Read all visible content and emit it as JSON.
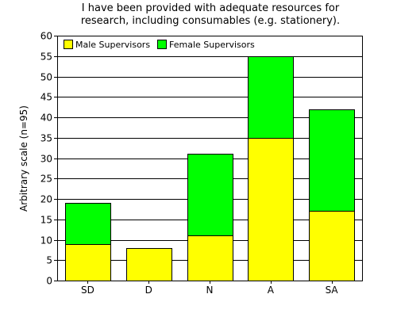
{
  "chart_data": {
    "type": "bar",
    "stacked": true,
    "title_lines": [
      "I have been provided with adequate resources for",
      "research, including consumables (e.g. stationery)."
    ],
    "xlabel": "",
    "ylabel": "Arbitrary scale (n=95)",
    "categories": [
      "SD",
      "D",
      "N",
      "A",
      "SA"
    ],
    "series": [
      {
        "name": "Male Supervisors",
        "color": "#ffff00",
        "values": [
          9,
          8,
          11,
          35,
          17
        ]
      },
      {
        "name": "Female Supervisors",
        "color": "#00ff00",
        "values": [
          10,
          0,
          20,
          20,
          25
        ]
      }
    ],
    "ylim": [
      0,
      60
    ],
    "yticks": [
      0,
      5,
      10,
      15,
      20,
      25,
      30,
      35,
      40,
      45,
      50,
      55,
      60
    ],
    "grid": true,
    "legend": "top-left"
  }
}
